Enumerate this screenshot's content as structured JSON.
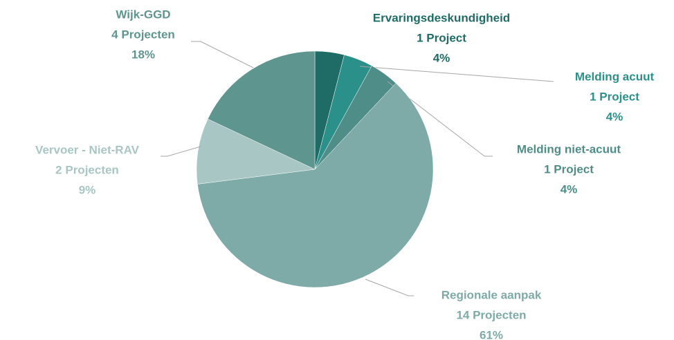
{
  "chart_data": {
    "type": "pie",
    "categories": [
      "Ervaringsdeskundigheid",
      "Melding acuut",
      "Melding niet-acuut",
      "Regionale aanpak",
      "Vervoer - Niet-RAV",
      "Wijk-GGD"
    ],
    "counts": [
      "1 Project",
      "1 Project",
      "1 Project",
      "14 Projecten",
      "2 Projecten",
      "4 Projecten"
    ],
    "values": [
      4,
      4,
      4,
      61,
      9,
      18
    ],
    "value_labels": [
      "4%",
      "4%",
      "4%",
      "61%",
      "9%",
      "18%"
    ],
    "colors": [
      "#1f6b66",
      "#2a9089",
      "#4e8d88",
      "#7eaaa7",
      "#a8c6c3",
      "#5e958f"
    ]
  }
}
